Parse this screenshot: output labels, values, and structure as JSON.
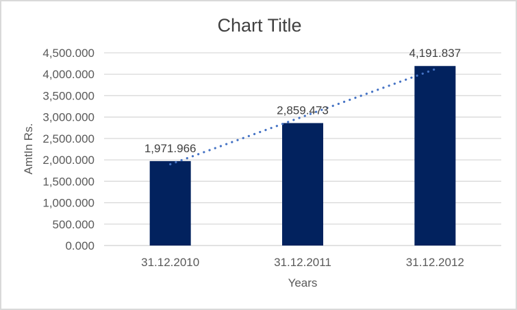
{
  "window": {
    "background_color": "#ffffff",
    "border_color": "#d9d9d9"
  },
  "chart_data": {
    "type": "bar",
    "title": "Chart Title",
    "xlabel": "Years",
    "ylabel": "AmtIn Rs.",
    "categories": [
      "31.12.2010",
      "31.12.2011",
      "31.12.2012"
    ],
    "values": [
      1971.966,
      2859.473,
      4191.837
    ],
    "data_labels": [
      "1,971.966",
      "2,859.473",
      "4,191.837"
    ],
    "ylim": [
      0,
      4500
    ],
    "ytick_step": 500,
    "ytick_labels": [
      "0.000",
      "500.000",
      "1,000.000",
      "1,500.000",
      "2,000.000",
      "2,500.000",
      "3,000.000",
      "3,500.000",
      "4,000.000",
      "4,500.000"
    ],
    "grid": true,
    "legend": "none",
    "bar_color": "#02225e",
    "trendline": {
      "fit": "linear",
      "style": "dotted",
      "color": "#4472c4"
    },
    "gridline_color": "#d9d9d9",
    "axis_line_color": "#d0d0d0",
    "tick_text_color": "#595959",
    "title_color": "#404040",
    "data_label_color": "#404040"
  }
}
